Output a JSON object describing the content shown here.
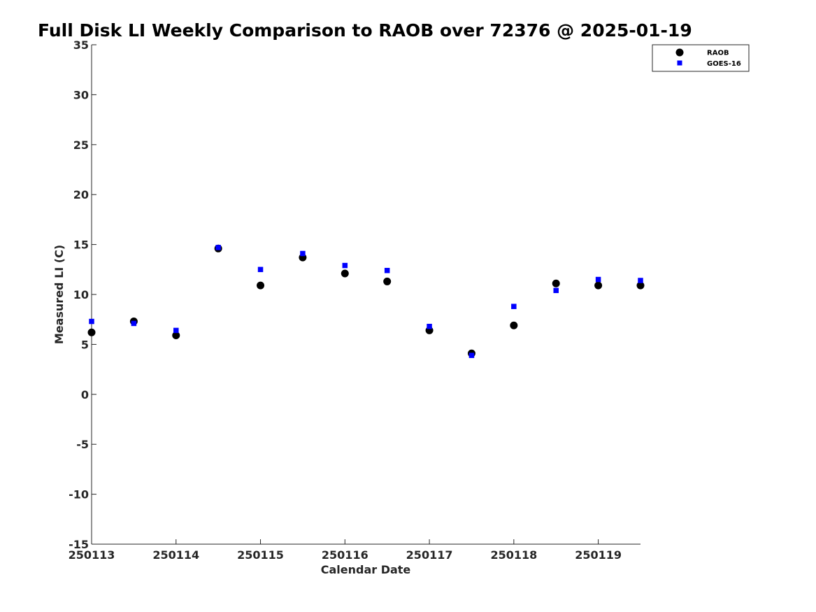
{
  "chart_data": {
    "type": "scatter",
    "title": "Full Disk LI Weekly Comparison to RAOB over 72376 @ 2025-01-19",
    "xlabel": "Calendar Date",
    "ylabel": "Measured LI (C)",
    "xlim": [
      0,
      6.5
    ],
    "ylim": [
      -15,
      35
    ],
    "x_ticks": [
      0,
      1,
      2,
      3,
      4,
      5,
      6
    ],
    "x_tick_labels": [
      "250113",
      "250114",
      "250115",
      "250116",
      "250117",
      "250118",
      "250119"
    ],
    "y_ticks": [
      -15,
      -10,
      -5,
      0,
      5,
      10,
      15,
      20,
      25,
      30,
      35
    ],
    "y_tick_labels": [
      "-15",
      "-10",
      "-5",
      "0",
      "5",
      "10",
      "15",
      "20",
      "25",
      "30",
      "35"
    ],
    "grid": false,
    "legend_position": "top-right",
    "series": [
      {
        "name": "RAOB",
        "marker": "circle",
        "color": "#000000",
        "x": [
          0,
          0.5,
          1,
          1.5,
          2,
          2.5,
          3,
          3.5,
          4,
          4.5,
          5,
          5.5,
          6,
          6.5
        ],
        "values": [
          6.2,
          7.3,
          5.9,
          14.6,
          10.9,
          13.7,
          12.1,
          11.3,
          6.4,
          4.1,
          6.9,
          11.1,
          10.9,
          10.9
        ]
      },
      {
        "name": "GOES-16",
        "marker": "square",
        "color": "#0000ff",
        "x": [
          0,
          0.5,
          1,
          1.5,
          2,
          2.5,
          3,
          3.5,
          4,
          4.5,
          5,
          5.5,
          6,
          6.5
        ],
        "values": [
          7.3,
          7.1,
          6.4,
          14.7,
          12.5,
          14.1,
          12.9,
          12.4,
          6.8,
          3.9,
          8.8,
          10.4,
          11.5,
          11.4
        ]
      }
    ]
  }
}
